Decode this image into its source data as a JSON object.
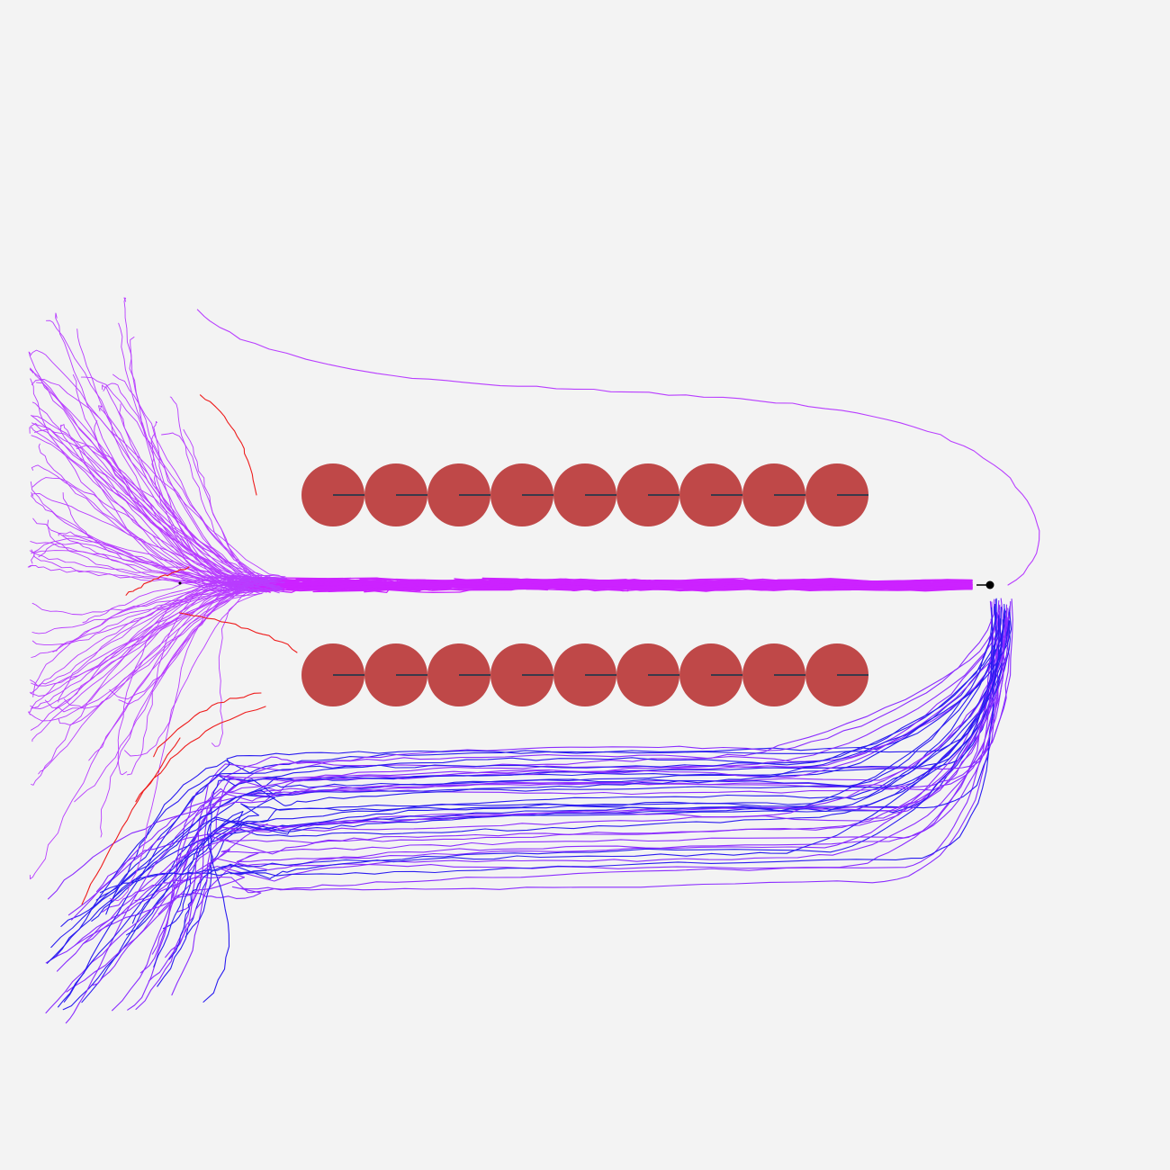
{
  "colors": {
    "background": "#f3f3f3",
    "obstacle": "#bf4848",
    "obstacle_heading": "#3a3a4a",
    "goal": "#000000",
    "trajectory_center": "#cc22ff",
    "trajectory_upper": "#b83dff",
    "trajectory_lower_purple": "#8a2cff",
    "trajectory_lower_blue": "#2a1cf0",
    "trajectory_failed": "#ee1c1c"
  },
  "icons": {
    "obstacle": "filled-circle-with-heading-line",
    "goal": "black-dot"
  },
  "scene": {
    "obstacle_rows": 2,
    "obstacles_per_row": 9,
    "goal_count": 1,
    "trajectory_groups": [
      "center-corridor",
      "upper-detour",
      "lower-detour",
      "failed"
    ]
  }
}
